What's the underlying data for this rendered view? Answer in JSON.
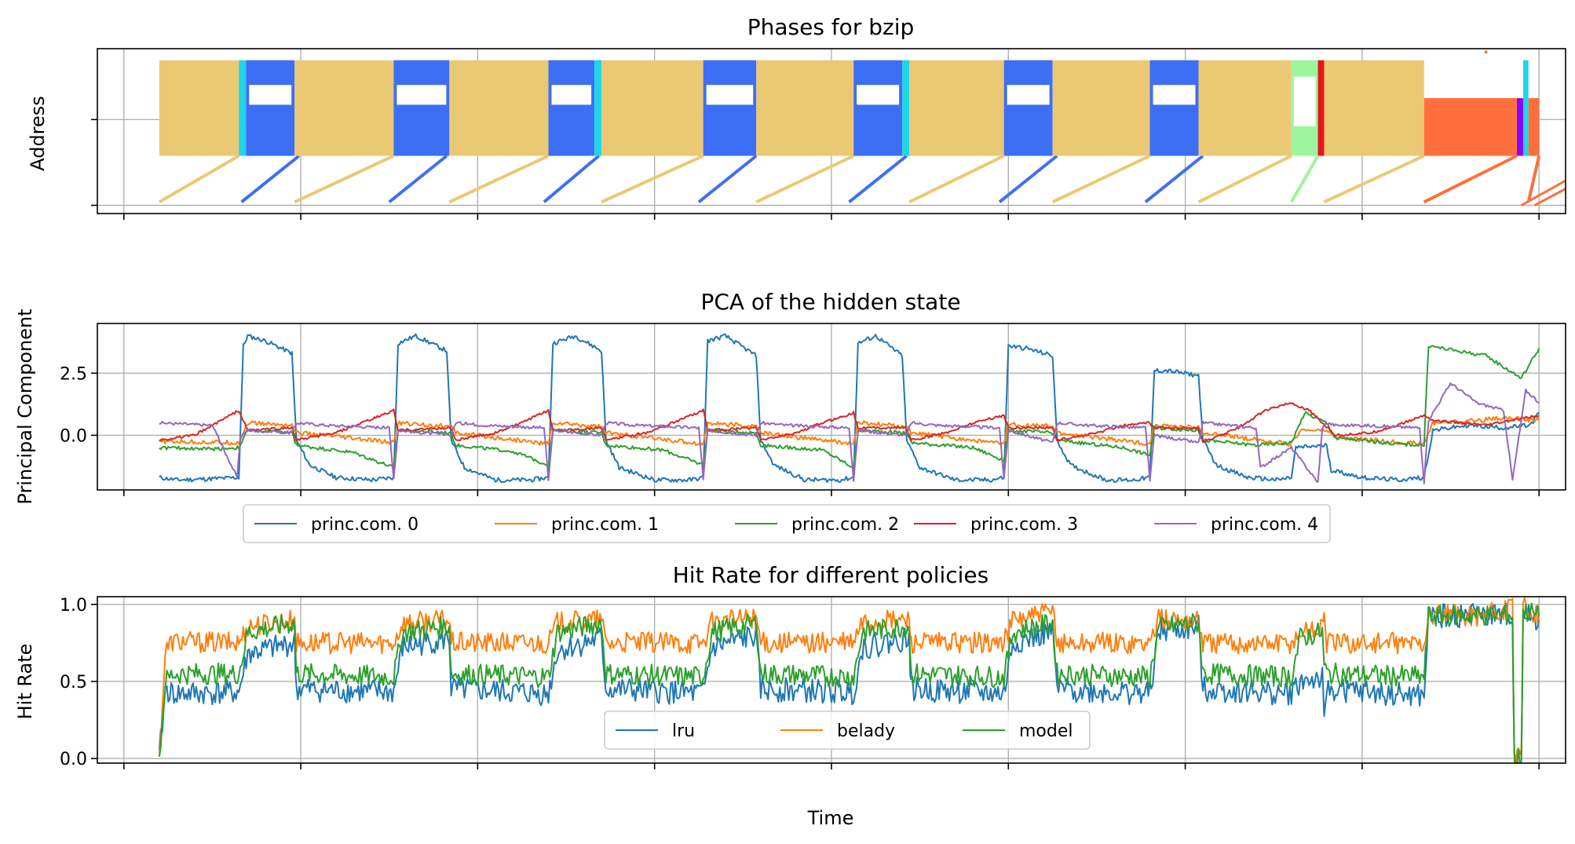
{
  "figure": {
    "xlabel": "Time"
  },
  "chart_data": [
    {
      "type": "scatter",
      "title": "Phases for bzip",
      "xlabel": "",
      "ylabel": "Address",
      "xlim": [
        -0.3,
        16.3
      ],
      "ylim": [
        0,
        1
      ],
      "yticks": [
        0.05,
        0.57
      ],
      "grid": true,
      "colors": {
        "main": "#EBC874",
        "loop": "#3D6FF5",
        "marker": "#1FD5E8",
        "green": "#9EF59E",
        "red": "#E6151A",
        "orange": "#FF6F3D",
        "violet": "#8800FF"
      },
      "phases": [
        {
          "type": "main",
          "start": 0.4,
          "end": 1.3
        },
        {
          "type": "marker",
          "start": 1.3,
          "end": 1.38
        },
        {
          "type": "loop",
          "start": 1.38,
          "end": 1.93
        },
        {
          "type": "main",
          "start": 1.93,
          "end": 3.05
        },
        {
          "type": "loop",
          "start": 3.05,
          "end": 3.68
        },
        {
          "type": "main",
          "start": 3.68,
          "end": 4.8
        },
        {
          "type": "loop",
          "start": 4.8,
          "end": 5.32
        },
        {
          "type": "marker",
          "start": 5.32,
          "end": 5.4
        },
        {
          "type": "main",
          "start": 5.4,
          "end": 6.55
        },
        {
          "type": "loop",
          "start": 6.55,
          "end": 7.15
        },
        {
          "type": "main",
          "start": 7.15,
          "end": 8.25
        },
        {
          "type": "loop",
          "start": 8.25,
          "end": 8.8
        },
        {
          "type": "marker",
          "start": 8.8,
          "end": 8.88
        },
        {
          "type": "main",
          "start": 8.88,
          "end": 9.95
        },
        {
          "type": "loop",
          "start": 9.95,
          "end": 10.5
        },
        {
          "type": "main",
          "start": 10.5,
          "end": 11.6
        },
        {
          "type": "loop",
          "start": 11.6,
          "end": 12.15
        },
        {
          "type": "main",
          "start": 12.15,
          "end": 13.2
        },
        {
          "type": "green",
          "start": 13.2,
          "end": 13.5
        },
        {
          "type": "red",
          "start": 13.5,
          "end": 13.57
        },
        {
          "type": "main",
          "start": 13.57,
          "end": 14.7
        },
        {
          "type": "orange",
          "start": 14.7,
          "end": 15.75
        },
        {
          "type": "violet",
          "start": 15.75,
          "end": 15.82
        },
        {
          "type": "marker",
          "start": 15.82,
          "end": 15.88
        },
        {
          "type": "orange",
          "start": 15.88,
          "end": 16.0
        }
      ]
    },
    {
      "type": "line",
      "title": "PCA of the hidden state",
      "xlabel": "",
      "ylabel": "Principal Component",
      "xlim": [
        -0.3,
        16.3
      ],
      "ylim": [
        -2.2,
        4.5
      ],
      "yticks": [
        0.0,
        2.5
      ],
      "grid": true,
      "legend": "below",
      "series": [
        {
          "name": "princ.com. 0",
          "color": "#1F77B4",
          "x": [
            0.4,
            0.6,
            1.0,
            1.3,
            1.35,
            1.4,
            1.6,
            1.9,
            1.95,
            2.1,
            2.4,
            2.8,
            3.05,
            3.1,
            3.3,
            3.65,
            3.7,
            3.85,
            4.2,
            4.6,
            4.8,
            4.85,
            5.1,
            5.4,
            5.45,
            5.6,
            6.0,
            6.4,
            6.55,
            6.6,
            6.8,
            7.15,
            7.2,
            7.35,
            7.7,
            8.1,
            8.25,
            8.3,
            8.5,
            8.8,
            8.85,
            9.0,
            9.4,
            9.8,
            9.95,
            10.0,
            10.2,
            10.5,
            10.55,
            10.7,
            11.1,
            11.4,
            11.6,
            11.65,
            11.8,
            12.15,
            12.2,
            12.35,
            12.7,
            13.05,
            13.2,
            13.25,
            13.6,
            13.65,
            14.0,
            14.4,
            14.7,
            14.8,
            15.2,
            15.6,
            15.9,
            16.0
          ],
          "y": [
            -1.7,
            -1.8,
            -1.75,
            -1.7,
            3.6,
            4.0,
            3.8,
            3.3,
            -0.2,
            -1.2,
            -1.7,
            -1.8,
            -1.7,
            3.7,
            4.0,
            3.4,
            -0.2,
            -1.3,
            -1.8,
            -1.8,
            -1.7,
            3.7,
            4.0,
            3.4,
            -0.2,
            -1.3,
            -1.8,
            -1.8,
            -1.7,
            3.8,
            4.0,
            3.2,
            -0.2,
            -1.2,
            -1.8,
            -1.8,
            -1.7,
            3.7,
            4.0,
            3.2,
            -0.2,
            -1.3,
            -1.8,
            -1.8,
            -1.7,
            3.6,
            3.5,
            3.2,
            -0.2,
            -1.2,
            -1.8,
            -1.8,
            -1.7,
            2.6,
            2.6,
            2.4,
            -0.2,
            -1.2,
            -1.7,
            -1.8,
            -1.7,
            -0.5,
            -0.4,
            -1.4,
            -1.7,
            -1.8,
            -1.7,
            0.2,
            0.4,
            0.3,
            0.4,
            0.9
          ]
        },
        {
          "name": "princ.com. 1",
          "color": "#FF7F0E",
          "x": [
            0.4,
            1.3,
            1.4,
            1.9,
            1.95,
            3.05,
            3.1,
            3.7,
            3.75,
            4.8,
            4.85,
            5.4,
            5.45,
            6.55,
            6.6,
            7.15,
            7.2,
            8.25,
            8.3,
            8.85,
            8.9,
            9.95,
            10.0,
            10.5,
            10.55,
            11.6,
            11.65,
            12.15,
            12.2,
            13.2,
            13.3,
            13.6,
            13.7,
            14.7,
            14.8,
            15.3,
            15.6,
            16.0
          ],
          "y": [
            -0.25,
            -0.3,
            0.5,
            0.4,
            0.1,
            -0.3,
            0.5,
            0.35,
            0.1,
            -0.35,
            0.5,
            0.35,
            0.1,
            -0.35,
            0.5,
            0.35,
            0.1,
            -0.35,
            0.5,
            0.35,
            0.1,
            -0.35,
            0.45,
            0.35,
            0.1,
            -0.35,
            0.4,
            0.3,
            0.1,
            -0.35,
            0.2,
            0.2,
            -0.1,
            -0.35,
            0.5,
            0.6,
            0.7,
            0.6
          ]
        },
        {
          "name": "princ.com. 2",
          "color": "#2CA02C",
          "x": [
            0.4,
            1.0,
            1.3,
            1.4,
            1.9,
            1.95,
            2.6,
            3.05,
            3.1,
            3.7,
            3.75,
            4.4,
            4.8,
            4.85,
            5.4,
            5.45,
            6.1,
            6.55,
            6.6,
            7.15,
            7.2,
            7.9,
            8.25,
            8.3,
            8.85,
            8.9,
            9.6,
            9.95,
            10.0,
            10.5,
            10.55,
            11.3,
            11.6,
            11.65,
            12.15,
            12.2,
            12.8,
            13.2,
            13.35,
            13.6,
            13.7,
            14.4,
            14.7,
            14.75,
            15.4,
            15.8,
            16.0
          ],
          "y": [
            -0.5,
            -0.55,
            -0.5,
            0.2,
            0.1,
            -0.4,
            -0.7,
            -1.3,
            0.2,
            0.1,
            -0.4,
            -0.65,
            -1.2,
            0.2,
            0.1,
            -0.4,
            -0.6,
            -1.2,
            0.2,
            0.1,
            -0.4,
            -0.6,
            -1.3,
            0.2,
            0.1,
            -0.3,
            -0.5,
            -1.0,
            0.2,
            0.1,
            -0.2,
            -0.5,
            -0.8,
            0.3,
            0.2,
            -0.2,
            -0.4,
            -0.3,
            0.9,
            0.5,
            -0.1,
            -0.35,
            -0.4,
            3.6,
            3.2,
            2.3,
            3.5
          ]
        },
        {
          "name": "princ.com. 3",
          "color": "#D62728",
          "x": [
            0.4,
            0.8,
            1.0,
            1.2,
            1.3,
            1.4,
            1.9,
            1.95,
            2.4,
            2.7,
            3.05,
            3.1,
            3.7,
            3.75,
            4.2,
            4.5,
            4.8,
            4.85,
            5.4,
            5.45,
            5.9,
            6.2,
            6.55,
            6.6,
            7.15,
            7.2,
            7.6,
            7.9,
            8.25,
            8.3,
            8.85,
            8.9,
            9.3,
            9.6,
            9.95,
            10.0,
            10.5,
            10.55,
            11.0,
            11.3,
            11.6,
            11.65,
            12.15,
            12.2,
            12.6,
            12.9,
            13.2,
            13.4,
            13.7,
            14.1,
            14.4,
            14.7,
            14.8,
            15.4,
            16.0
          ],
          "y": [
            -0.2,
            0.0,
            0.4,
            0.8,
            1.0,
            0.2,
            0.3,
            -0.2,
            0.1,
            0.5,
            1.0,
            0.2,
            0.3,
            -0.2,
            0.1,
            0.5,
            1.0,
            0.2,
            0.3,
            -0.2,
            0.1,
            0.5,
            1.0,
            0.2,
            0.3,
            -0.2,
            0.1,
            0.5,
            0.9,
            0.3,
            0.3,
            -0.2,
            0.1,
            0.5,
            0.8,
            0.3,
            0.3,
            -0.2,
            0.1,
            0.4,
            0.5,
            0.3,
            0.3,
            -0.3,
            0.3,
            1.0,
            1.3,
            1.0,
            0.0,
            0.1,
            0.4,
            0.8,
            0.6,
            0.4,
            0.8
          ]
        },
        {
          "name": "princ.com. 4",
          "color": "#9467BD",
          "x": [
            0.4,
            1.0,
            1.28,
            1.32,
            1.4,
            1.9,
            1.95,
            2.3,
            3.0,
            3.05,
            3.1,
            3.7,
            3.75,
            4.1,
            4.75,
            4.8,
            4.85,
            5.4,
            5.45,
            5.8,
            6.5,
            6.55,
            6.6,
            7.15,
            7.2,
            7.5,
            8.2,
            8.25,
            8.3,
            8.85,
            8.9,
            9.2,
            9.9,
            9.95,
            10.0,
            10.5,
            10.55,
            10.9,
            11.55,
            11.6,
            11.65,
            12.15,
            12.2,
            12.5,
            12.8,
            12.85,
            13.2,
            13.5,
            13.55,
            13.6,
            13.7,
            14.0,
            14.65,
            14.7,
            14.75,
            15.0,
            15.3,
            15.6,
            15.7,
            15.85,
            15.95,
            16.0
          ],
          "y": [
            0.5,
            0.4,
            -1.7,
            0.0,
            0.2,
            0.1,
            0.5,
            0.4,
            0.3,
            -1.8,
            0.2,
            0.0,
            0.5,
            0.4,
            0.3,
            -1.8,
            0.2,
            0.0,
            0.5,
            0.4,
            0.3,
            -1.8,
            0.2,
            0.0,
            0.5,
            0.4,
            0.3,
            -1.8,
            0.2,
            0.0,
            0.5,
            0.4,
            0.3,
            -1.8,
            0.2,
            -0.3,
            0.5,
            0.4,
            0.3,
            -1.8,
            0.0,
            -0.3,
            0.5,
            0.4,
            0.3,
            -1.3,
            -0.5,
            -1.9,
            0.3,
            0.5,
            0.4,
            0.4,
            0.3,
            -1.9,
            0.6,
            2.1,
            1.3,
            1.0,
            -1.8,
            1.8,
            1.5,
            1.3
          ]
        }
      ]
    },
    {
      "type": "line",
      "title": "Hit Rate for different policies",
      "xlabel": "",
      "ylabel": "Hit Rate",
      "xlim": [
        -0.3,
        16.3
      ],
      "ylim": [
        -0.03,
        1.05
      ],
      "yticks": [
        0.0,
        0.5,
        1.0
      ],
      "grid": true,
      "legend": "lower center",
      "series": [
        {
          "name": "lru",
          "color": "#1F77B4",
          "x": [
            0.4,
            0.47,
            0.55,
            1.3,
            1.4,
            1.93,
            1.95,
            3.05,
            3.15,
            3.68,
            3.7,
            4.8,
            4.9,
            5.4,
            5.45,
            6.55,
            6.65,
            7.15,
            7.2,
            8.25,
            8.35,
            8.88,
            8.9,
            9.95,
            10.05,
            10.5,
            10.55,
            11.6,
            11.7,
            12.15,
            12.2,
            13.2,
            13.3,
            13.55,
            13.57,
            13.6,
            14.7,
            14.75,
            15.3,
            15.7,
            15.72,
            15.8,
            15.82,
            15.9,
            16.0
          ],
          "y": [
            0.0,
            0.45,
            0.42,
            0.43,
            0.68,
            0.75,
            0.45,
            0.43,
            0.72,
            0.78,
            0.45,
            0.42,
            0.7,
            0.78,
            0.45,
            0.42,
            0.72,
            0.8,
            0.45,
            0.43,
            0.72,
            0.78,
            0.45,
            0.42,
            0.75,
            0.82,
            0.45,
            0.42,
            0.82,
            0.85,
            0.45,
            0.42,
            0.5,
            0.52,
            0.2,
            0.45,
            0.4,
            0.92,
            0.93,
            0.93,
            0.0,
            0.0,
            0.92,
            0.92,
            0.9
          ]
        },
        {
          "name": "belady",
          "color": "#FF7F0E",
          "x": [
            0.4,
            0.47,
            0.55,
            1.3,
            1.4,
            1.93,
            1.95,
            3.05,
            3.15,
            3.68,
            3.7,
            4.8,
            4.9,
            5.4,
            5.45,
            6.55,
            6.65,
            7.15,
            7.2,
            8.25,
            8.35,
            8.88,
            8.9,
            9.95,
            10.05,
            10.5,
            10.55,
            11.6,
            11.7,
            12.15,
            12.2,
            13.2,
            13.3,
            13.55,
            13.57,
            13.6,
            14.7,
            14.75,
            15.3,
            15.6,
            15.7,
            15.72,
            15.8,
            15.82,
            15.9,
            16.0
          ],
          "y": [
            0.0,
            0.7,
            0.76,
            0.75,
            0.86,
            0.9,
            0.75,
            0.75,
            0.88,
            0.9,
            0.75,
            0.75,
            0.88,
            0.9,
            0.75,
            0.75,
            0.88,
            0.92,
            0.75,
            0.75,
            0.88,
            0.9,
            0.75,
            0.75,
            0.9,
            0.95,
            0.75,
            0.75,
            0.9,
            0.9,
            0.75,
            0.75,
            0.82,
            0.85,
            0.98,
            0.75,
            0.75,
            0.93,
            0.93,
            0.95,
            1.0,
            0.0,
            0.0,
            1.0,
            0.97,
            0.93
          ]
        },
        {
          "name": "model",
          "color": "#2CA02C",
          "x": [
            0.4,
            0.47,
            0.55,
            1.3,
            1.4,
            1.93,
            1.95,
            3.05,
            3.15,
            3.68,
            3.7,
            4.8,
            4.9,
            5.4,
            5.45,
            6.55,
            6.65,
            7.15,
            7.2,
            8.25,
            8.35,
            8.88,
            8.9,
            9.95,
            10.05,
            10.5,
            10.55,
            11.6,
            11.7,
            12.15,
            12.2,
            13.2,
            13.3,
            13.55,
            13.57,
            13.6,
            14.7,
            14.75,
            15.3,
            15.7,
            15.72,
            15.8,
            15.82,
            15.9,
            16.0
          ],
          "y": [
            0.0,
            0.5,
            0.55,
            0.55,
            0.82,
            0.88,
            0.55,
            0.53,
            0.82,
            0.86,
            0.55,
            0.53,
            0.82,
            0.88,
            0.55,
            0.53,
            0.82,
            0.88,
            0.55,
            0.53,
            0.82,
            0.86,
            0.55,
            0.53,
            0.82,
            0.88,
            0.55,
            0.53,
            0.85,
            0.88,
            0.55,
            0.53,
            0.78,
            0.82,
            0.6,
            0.55,
            0.53,
            0.92,
            0.93,
            0.93,
            0.0,
            0.0,
            0.95,
            0.95,
            0.92
          ]
        }
      ]
    }
  ]
}
